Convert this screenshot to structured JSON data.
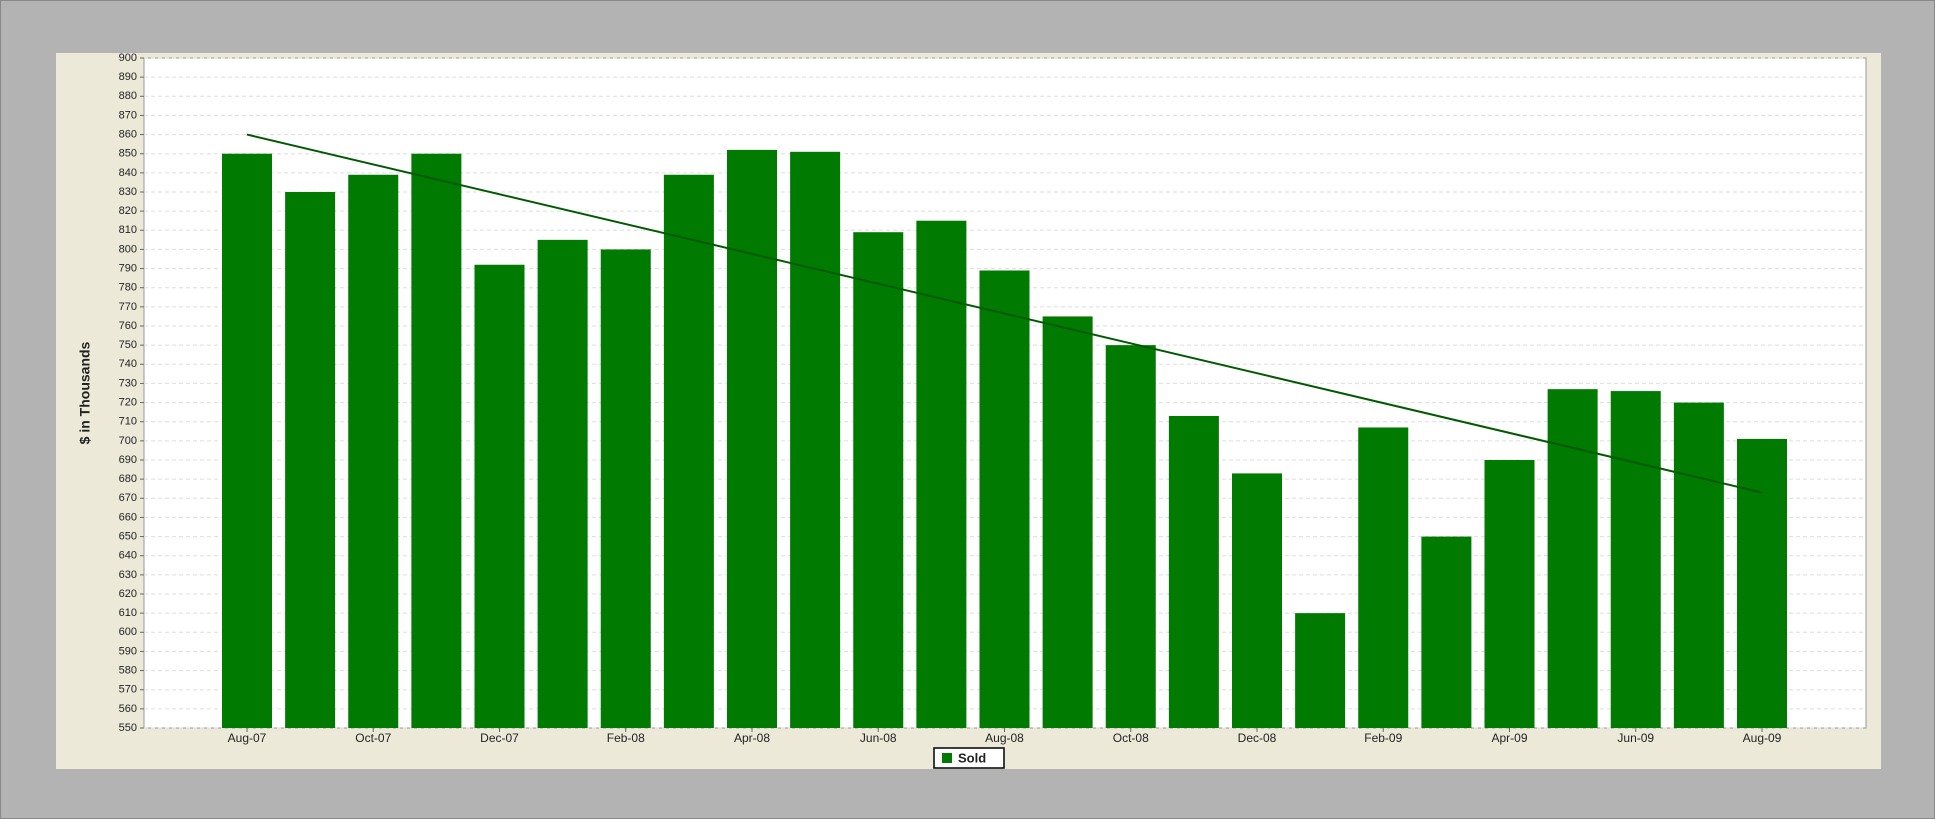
{
  "chart_data": {
    "type": "bar",
    "y_label": "$ in Thousands",
    "categories": [
      "Aug-07",
      null,
      "Oct-07",
      null,
      "Dec-07",
      null,
      "Feb-08",
      null,
      "Apr-08",
      null,
      "Jun-08",
      null,
      "Aug-08",
      null,
      "Oct-08",
      null,
      "Dec-08",
      null,
      "Feb-09",
      null,
      "Apr-09",
      null,
      "Jun-09",
      null,
      "Aug-09"
    ],
    "series": [
      {
        "name": "Sold",
        "color": "#007a00",
        "values": [
          850,
          830,
          839,
          850,
          792,
          805,
          800,
          839,
          852,
          851,
          809,
          815,
          789,
          765,
          750,
          713,
          683,
          610,
          707,
          650,
          690,
          727,
          726,
          720,
          701
        ]
      }
    ],
    "trend_line": {
      "start": 860,
      "end": 673,
      "color": "#005a00"
    },
    "ylim": [
      550,
      900
    ],
    "yticks": [
      550,
      560,
      570,
      580,
      590,
      600,
      610,
      620,
      630,
      640,
      650,
      660,
      670,
      680,
      690,
      700,
      710,
      720,
      730,
      740,
      750,
      760,
      770,
      780,
      790,
      800,
      810,
      820,
      830,
      840,
      850,
      860,
      870,
      880,
      890,
      900
    ],
    "grid": true
  }
}
